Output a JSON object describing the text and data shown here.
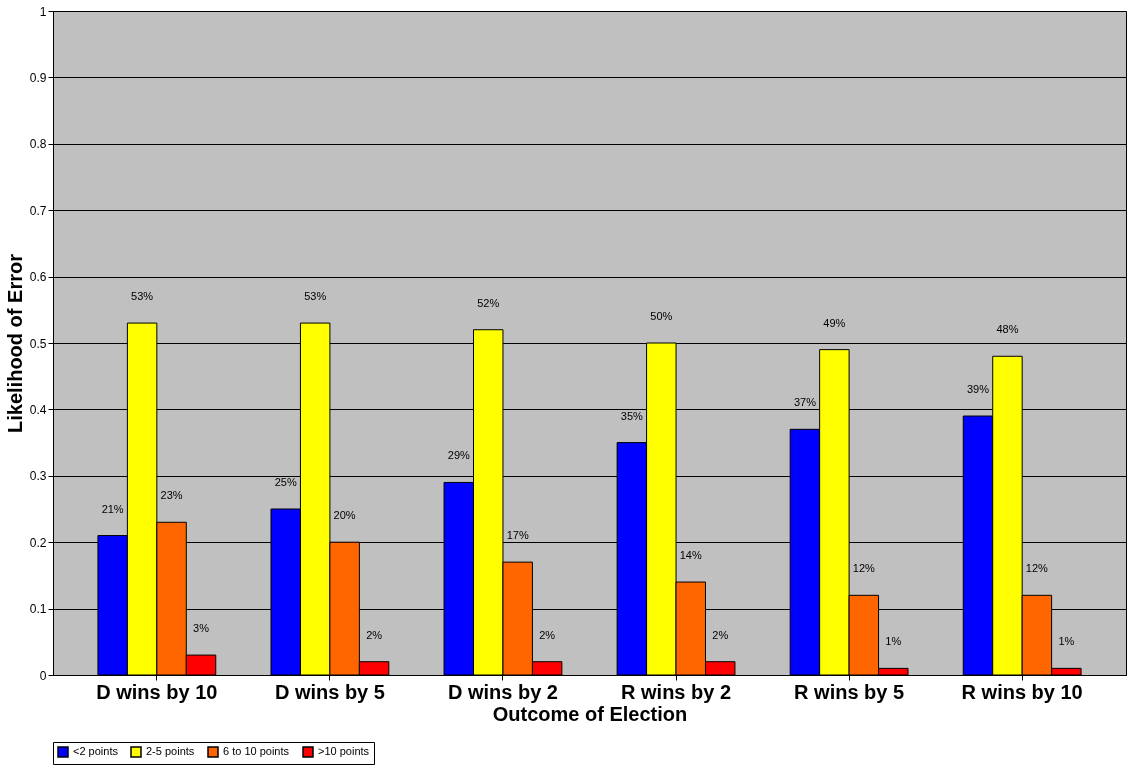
{
  "chart_data": {
    "type": "bar",
    "xlabel": "Outcome of Election",
    "ylabel": "Likelihood of Error",
    "categories": [
      "D wins by 10",
      "D wins by 5",
      "D wins by 2",
      "R wins by 2",
      "R wins by 5",
      "R wins by 10"
    ],
    "series": [
      {
        "name": "<2 points",
        "color": "#0000ff",
        "values": [
          0.21,
          0.25,
          0.29,
          0.35,
          0.37,
          0.39
        ],
        "value_labels": [
          "21%",
          "25%",
          "29%",
          "35%",
          "37%",
          "39%"
        ]
      },
      {
        "name": "2-5 points",
        "color": "#ffff00",
        "values": [
          0.53,
          0.53,
          0.52,
          0.5,
          0.49,
          0.48
        ],
        "value_labels": [
          "53%",
          "53%",
          "52%",
          "50%",
          "49%",
          "48%"
        ]
      },
      {
        "name": "6 to 10 points",
        "color": "#ff6600",
        "values": [
          0.23,
          0.2,
          0.17,
          0.14,
          0.12,
          0.12
        ],
        "value_labels": [
          "23%",
          "20%",
          "17%",
          "14%",
          "12%",
          "12%"
        ]
      },
      {
        "name": ">10 points",
        "color": "#ff0000",
        "values": [
          0.03,
          0.02,
          0.02,
          0.02,
          0.01,
          0.01
        ],
        "value_labels": [
          "3%",
          "2%",
          "2%",
          "2%",
          "1%",
          "1%"
        ]
      }
    ],
    "ylim": [
      0,
      1
    ],
    "yticks": [
      0,
      0.1,
      0.2,
      0.3,
      0.4,
      0.5,
      0.6,
      0.7,
      0.8,
      0.9,
      1
    ],
    "grid": "y",
    "legend": "bottom"
  }
}
